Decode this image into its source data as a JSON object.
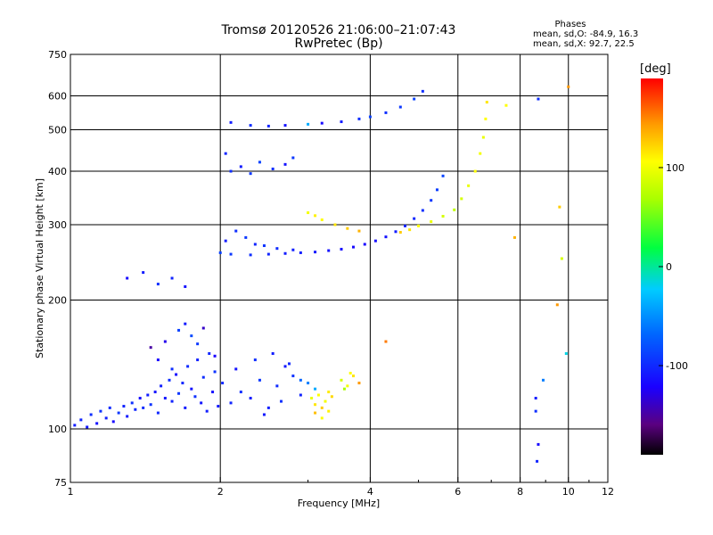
{
  "header": {
    "title_line1": "Tromsø 20120526 21:06:00–21:07:43",
    "title_line2": "RwPretec (Bp)"
  },
  "phases": {
    "title": "Phases",
    "line_o": "mean, sd,O: -84.9, 16.3",
    "line_x": "mean, sd,X:  92.7, 22.5"
  },
  "colorbar": {
    "label": "[deg]",
    "ticks": [
      {
        "value": 100,
        "label": "100"
      },
      {
        "value": 0,
        "label": "0"
      },
      {
        "value": -100,
        "label": "-100"
      }
    ],
    "range": [
      -190,
      190
    ]
  },
  "chart_data": {
    "type": "scatter",
    "title": "Tromsø 20120526 21:06:00–21:07:43",
    "subtitle": "RwPretec (Bp)",
    "xlabel": "Frequency [MHz]",
    "ylabel": "Stationary phase Virtual Height [km]",
    "xscale": "log",
    "yscale": "log",
    "xlim": [
      1,
      12
    ],
    "ylim": [
      75,
      750
    ],
    "grid": true,
    "xticks": [
      {
        "value": 1,
        "label": "1"
      },
      {
        "value": 2,
        "label": "2"
      },
      {
        "value": 4,
        "label": "4"
      },
      {
        "value": 6,
        "label": "6"
      },
      {
        "value": 8,
        "label": "8"
      },
      {
        "value": 10,
        "label": "10"
      },
      {
        "value": 12,
        "label": "12"
      }
    ],
    "yticks": [
      {
        "value": 75,
        "label": "75"
      },
      {
        "value": 100,
        "label": "100"
      },
      {
        "value": 200,
        "label": "200"
      },
      {
        "value": 300,
        "label": "300"
      },
      {
        "value": 400,
        "label": "400"
      },
      {
        "value": 500,
        "label": "500"
      },
      {
        "value": 600,
        "label": "600"
      },
      {
        "value": 750,
        "label": "750"
      }
    ],
    "colorbar_label": "[deg]",
    "points": [
      {
        "f": 1.02,
        "h": 102,
        "p": -110
      },
      {
        "f": 1.05,
        "h": 105,
        "p": -105
      },
      {
        "f": 1.08,
        "h": 101,
        "p": -112
      },
      {
        "f": 1.1,
        "h": 108,
        "p": -100
      },
      {
        "f": 1.13,
        "h": 103,
        "p": -115
      },
      {
        "f": 1.15,
        "h": 110,
        "p": -98
      },
      {
        "f": 1.18,
        "h": 106,
        "p": -108
      },
      {
        "f": 1.2,
        "h": 112,
        "p": -102
      },
      {
        "f": 1.22,
        "h": 104,
        "p": -120
      },
      {
        "f": 1.25,
        "h": 109,
        "p": -95
      },
      {
        "f": 1.28,
        "h": 113,
        "p": -106
      },
      {
        "f": 1.3,
        "h": 107,
        "p": -111
      },
      {
        "f": 1.33,
        "h": 115,
        "p": -99
      },
      {
        "f": 1.35,
        "h": 111,
        "p": -104
      },
      {
        "f": 1.38,
        "h": 118,
        "p": -117
      },
      {
        "f": 1.4,
        "h": 112,
        "p": -101
      },
      {
        "f": 1.43,
        "h": 120,
        "p": -109
      },
      {
        "f": 1.45,
        "h": 114,
        "p": -97
      },
      {
        "f": 1.48,
        "h": 122,
        "p": -114
      },
      {
        "f": 1.5,
        "h": 109,
        "p": -103
      },
      {
        "f": 1.52,
        "h": 126,
        "p": -108
      },
      {
        "f": 1.55,
        "h": 118,
        "p": -112
      },
      {
        "f": 1.58,
        "h": 130,
        "p": -100
      },
      {
        "f": 1.6,
        "h": 116,
        "p": -106
      },
      {
        "f": 1.63,
        "h": 134,
        "p": -118
      },
      {
        "f": 1.65,
        "h": 121,
        "p": -96
      },
      {
        "f": 1.68,
        "h": 128,
        "p": -105
      },
      {
        "f": 1.7,
        "h": 112,
        "p": -110
      },
      {
        "f": 1.72,
        "h": 140,
        "p": -102
      },
      {
        "f": 1.75,
        "h": 124,
        "p": -115
      },
      {
        "f": 1.78,
        "h": 119,
        "p": -99
      },
      {
        "f": 1.8,
        "h": 145,
        "p": -107
      },
      {
        "f": 1.83,
        "h": 115,
        "p": -113
      },
      {
        "f": 1.85,
        "h": 132,
        "p": -101
      },
      {
        "f": 1.88,
        "h": 110,
        "p": -109
      },
      {
        "f": 1.9,
        "h": 150,
        "p": -104
      },
      {
        "f": 1.93,
        "h": 122,
        "p": -116
      },
      {
        "f": 1.95,
        "h": 136,
        "p": -98
      },
      {
        "f": 1.98,
        "h": 113,
        "p": -111
      },
      {
        "f": 2.02,
        "h": 128,
        "p": -103
      },
      {
        "f": 1.45,
        "h": 155,
        "p": -150
      },
      {
        "f": 1.55,
        "h": 160,
        "p": -130
      },
      {
        "f": 1.65,
        "h": 170,
        "p": -90
      },
      {
        "f": 1.75,
        "h": 165,
        "p": -85
      },
      {
        "f": 1.85,
        "h": 172,
        "p": -140
      },
      {
        "f": 1.5,
        "h": 145,
        "p": -120
      },
      {
        "f": 1.6,
        "h": 138,
        "p": -100
      },
      {
        "f": 1.7,
        "h": 176,
        "p": -110
      },
      {
        "f": 1.8,
        "h": 158,
        "p": -95
      },
      {
        "f": 1.95,
        "h": 148,
        "p": -125
      },
      {
        "f": 2.1,
        "h": 115,
        "p": -105
      },
      {
        "f": 2.2,
        "h": 122,
        "p": -100
      },
      {
        "f": 2.3,
        "h": 118,
        "p": -110
      },
      {
        "f": 2.4,
        "h": 130,
        "p": -95
      },
      {
        "f": 2.5,
        "h": 112,
        "p": -108
      },
      {
        "f": 2.6,
        "h": 126,
        "p": -102
      },
      {
        "f": 2.7,
        "h": 140,
        "p": -112
      },
      {
        "f": 2.8,
        "h": 133,
        "p": -98
      },
      {
        "f": 2.9,
        "h": 120,
        "p": -106
      },
      {
        "f": 2.15,
        "h": 138,
        "p": -115
      },
      {
        "f": 2.35,
        "h": 145,
        "p": -101
      },
      {
        "f": 2.55,
        "h": 150,
        "p": -109
      },
      {
        "f": 2.75,
        "h": 142,
        "p": -103
      },
      {
        "f": 2.45,
        "h": 108,
        "p": -111
      },
      {
        "f": 2.65,
        "h": 116,
        "p": -99
      },
      {
        "f": 2.9,
        "h": 130,
        "p": -70
      },
      {
        "f": 3.0,
        "h": 128,
        "p": -60
      },
      {
        "f": 3.1,
        "h": 124,
        "p": -40
      },
      {
        "f": 3.05,
        "h": 118,
        "p": 90
      },
      {
        "f": 3.1,
        "h": 114,
        "p": 110
      },
      {
        "f": 3.15,
        "h": 120,
        "p": 100
      },
      {
        "f": 3.2,
        "h": 112,
        "p": 120
      },
      {
        "f": 3.25,
        "h": 116,
        "p": 95
      },
      {
        "f": 3.3,
        "h": 110,
        "p": 105
      },
      {
        "f": 3.35,
        "h": 119,
        "p": 115
      },
      {
        "f": 3.2,
        "h": 106,
        "p": 98
      },
      {
        "f": 3.3,
        "h": 122,
        "p": 108
      },
      {
        "f": 3.1,
        "h": 109,
        "p": 125
      },
      {
        "f": 3.5,
        "h": 130,
        "p": 80
      },
      {
        "f": 3.6,
        "h": 126,
        "p": 95
      },
      {
        "f": 3.7,
        "h": 133,
        "p": 110
      },
      {
        "f": 3.8,
        "h": 128,
        "p": 140
      },
      {
        "f": 3.55,
        "h": 124,
        "p": 60
      },
      {
        "f": 3.65,
        "h": 135,
        "p": 100
      },
      {
        "f": 2.0,
        "h": 258,
        "p": -90
      },
      {
        "f": 2.1,
        "h": 256,
        "p": -95
      },
      {
        "f": 2.3,
        "h": 255,
        "p": -100
      },
      {
        "f": 2.5,
        "h": 256,
        "p": -105
      },
      {
        "f": 2.7,
        "h": 257,
        "p": -110
      },
      {
        "f": 2.9,
        "h": 258,
        "p": -108
      },
      {
        "f": 3.1,
        "h": 259,
        "p": -112
      },
      {
        "f": 3.3,
        "h": 261,
        "p": -115
      },
      {
        "f": 3.5,
        "h": 263,
        "p": -118
      },
      {
        "f": 3.7,
        "h": 266,
        "p": -120
      },
      {
        "f": 3.9,
        "h": 270,
        "p": -122
      },
      {
        "f": 4.1,
        "h": 275,
        "p": -118
      },
      {
        "f": 4.3,
        "h": 281,
        "p": -115
      },
      {
        "f": 4.5,
        "h": 289,
        "p": -110
      },
      {
        "f": 4.7,
        "h": 298,
        "p": -108
      },
      {
        "f": 4.9,
        "h": 310,
        "p": -104
      },
      {
        "f": 5.1,
        "h": 324,
        "p": -100
      },
      {
        "f": 5.3,
        "h": 342,
        "p": -96
      },
      {
        "f": 5.45,
        "h": 362,
        "p": -92
      },
      {
        "f": 5.6,
        "h": 390,
        "p": -88
      },
      {
        "f": 2.05,
        "h": 275,
        "p": -110
      },
      {
        "f": 2.15,
        "h": 290,
        "p": -100
      },
      {
        "f": 2.25,
        "h": 280,
        "p": -95
      },
      {
        "f": 2.35,
        "h": 270,
        "p": -105
      },
      {
        "f": 2.45,
        "h": 268,
        "p": -98
      },
      {
        "f": 2.6,
        "h": 264,
        "p": -102
      },
      {
        "f": 2.8,
        "h": 262,
        "p": -108
      },
      {
        "f": 3.0,
        "h": 320,
        "p": 95
      },
      {
        "f": 3.1,
        "h": 315,
        "p": 105
      },
      {
        "f": 3.2,
        "h": 308,
        "p": 100
      },
      {
        "f": 3.4,
        "h": 300,
        "p": 110
      },
      {
        "f": 3.6,
        "h": 294,
        "p": 120
      },
      {
        "f": 3.8,
        "h": 290,
        "p": 130
      },
      {
        "f": 4.6,
        "h": 288,
        "p": 120
      },
      {
        "f": 4.8,
        "h": 292,
        "p": 110
      },
      {
        "f": 5.0,
        "h": 298,
        "p": 100
      },
      {
        "f": 5.3,
        "h": 305,
        "p": 90
      },
      {
        "f": 5.6,
        "h": 314,
        "p": 80
      },
      {
        "f": 5.9,
        "h": 325,
        "p": 70
      },
      {
        "f": 6.1,
        "h": 345,
        "p": 80
      },
      {
        "f": 6.3,
        "h": 370,
        "p": 90
      },
      {
        "f": 6.5,
        "h": 400,
        "p": 100
      },
      {
        "f": 6.65,
        "h": 440,
        "p": 95
      },
      {
        "f": 6.75,
        "h": 480,
        "p": 90
      },
      {
        "f": 6.82,
        "h": 530,
        "p": 100
      },
      {
        "f": 6.86,
        "h": 580,
        "p": 110
      },
      {
        "f": 2.1,
        "h": 400,
        "p": -100
      },
      {
        "f": 2.2,
        "h": 410,
        "p": -110
      },
      {
        "f": 2.3,
        "h": 395,
        "p": -95
      },
      {
        "f": 2.05,
        "h": 440,
        "p": -105
      },
      {
        "f": 2.4,
        "h": 420,
        "p": -90
      },
      {
        "f": 2.55,
        "h": 405,
        "p": -100
      },
      {
        "f": 2.7,
        "h": 415,
        "p": -115
      },
      {
        "f": 2.8,
        "h": 430,
        "p": -95
      },
      {
        "f": 2.1,
        "h": 520,
        "p": -110
      },
      {
        "f": 2.3,
        "h": 512,
        "p": -100
      },
      {
        "f": 2.5,
        "h": 510,
        "p": -105
      },
      {
        "f": 2.7,
        "h": 512,
        "p": -115
      },
      {
        "f": 3.0,
        "h": 515,
        "p": -40
      },
      {
        "f": 3.2,
        "h": 518,
        "p": -120
      },
      {
        "f": 3.5,
        "h": 522,
        "p": -110
      },
      {
        "f": 3.8,
        "h": 530,
        "p": -100
      },
      {
        "f": 4.0,
        "h": 536,
        "p": -90
      },
      {
        "f": 4.3,
        "h": 548,
        "p": -100
      },
      {
        "f": 4.6,
        "h": 565,
        "p": -95
      },
      {
        "f": 4.9,
        "h": 590,
        "p": -90
      },
      {
        "f": 5.1,
        "h": 615,
        "p": -100
      },
      {
        "f": 1.3,
        "h": 225,
        "p": -120
      },
      {
        "f": 1.4,
        "h": 232,
        "p": -110
      },
      {
        "f": 1.5,
        "h": 218,
        "p": -100
      },
      {
        "f": 1.6,
        "h": 225,
        "p": -105
      },
      {
        "f": 1.7,
        "h": 215,
        "p": -115
      },
      {
        "f": 8.6,
        "h": 118,
        "p": -110
      },
      {
        "f": 8.6,
        "h": 110,
        "p": -100
      },
      {
        "f": 8.7,
        "h": 92,
        "p": -120
      },
      {
        "f": 8.65,
        "h": 84,
        "p": -105
      },
      {
        "f": 8.9,
        "h": 130,
        "p": -60
      },
      {
        "f": 9.7,
        "h": 250,
        "p": 80
      },
      {
        "f": 9.5,
        "h": 195,
        "p": 140
      },
      {
        "f": 10.0,
        "h": 630,
        "p": 140
      },
      {
        "f": 8.7,
        "h": 590,
        "p": -100
      },
      {
        "f": 9.9,
        "h": 150,
        "p": -20
      },
      {
        "f": 9.6,
        "h": 330,
        "p": 120
      },
      {
        "f": 7.5,
        "h": 570,
        "p": 100
      },
      {
        "f": 7.8,
        "h": 280,
        "p": 130
      },
      {
        "f": 4.3,
        "h": 160,
        "p": 150
      }
    ]
  }
}
